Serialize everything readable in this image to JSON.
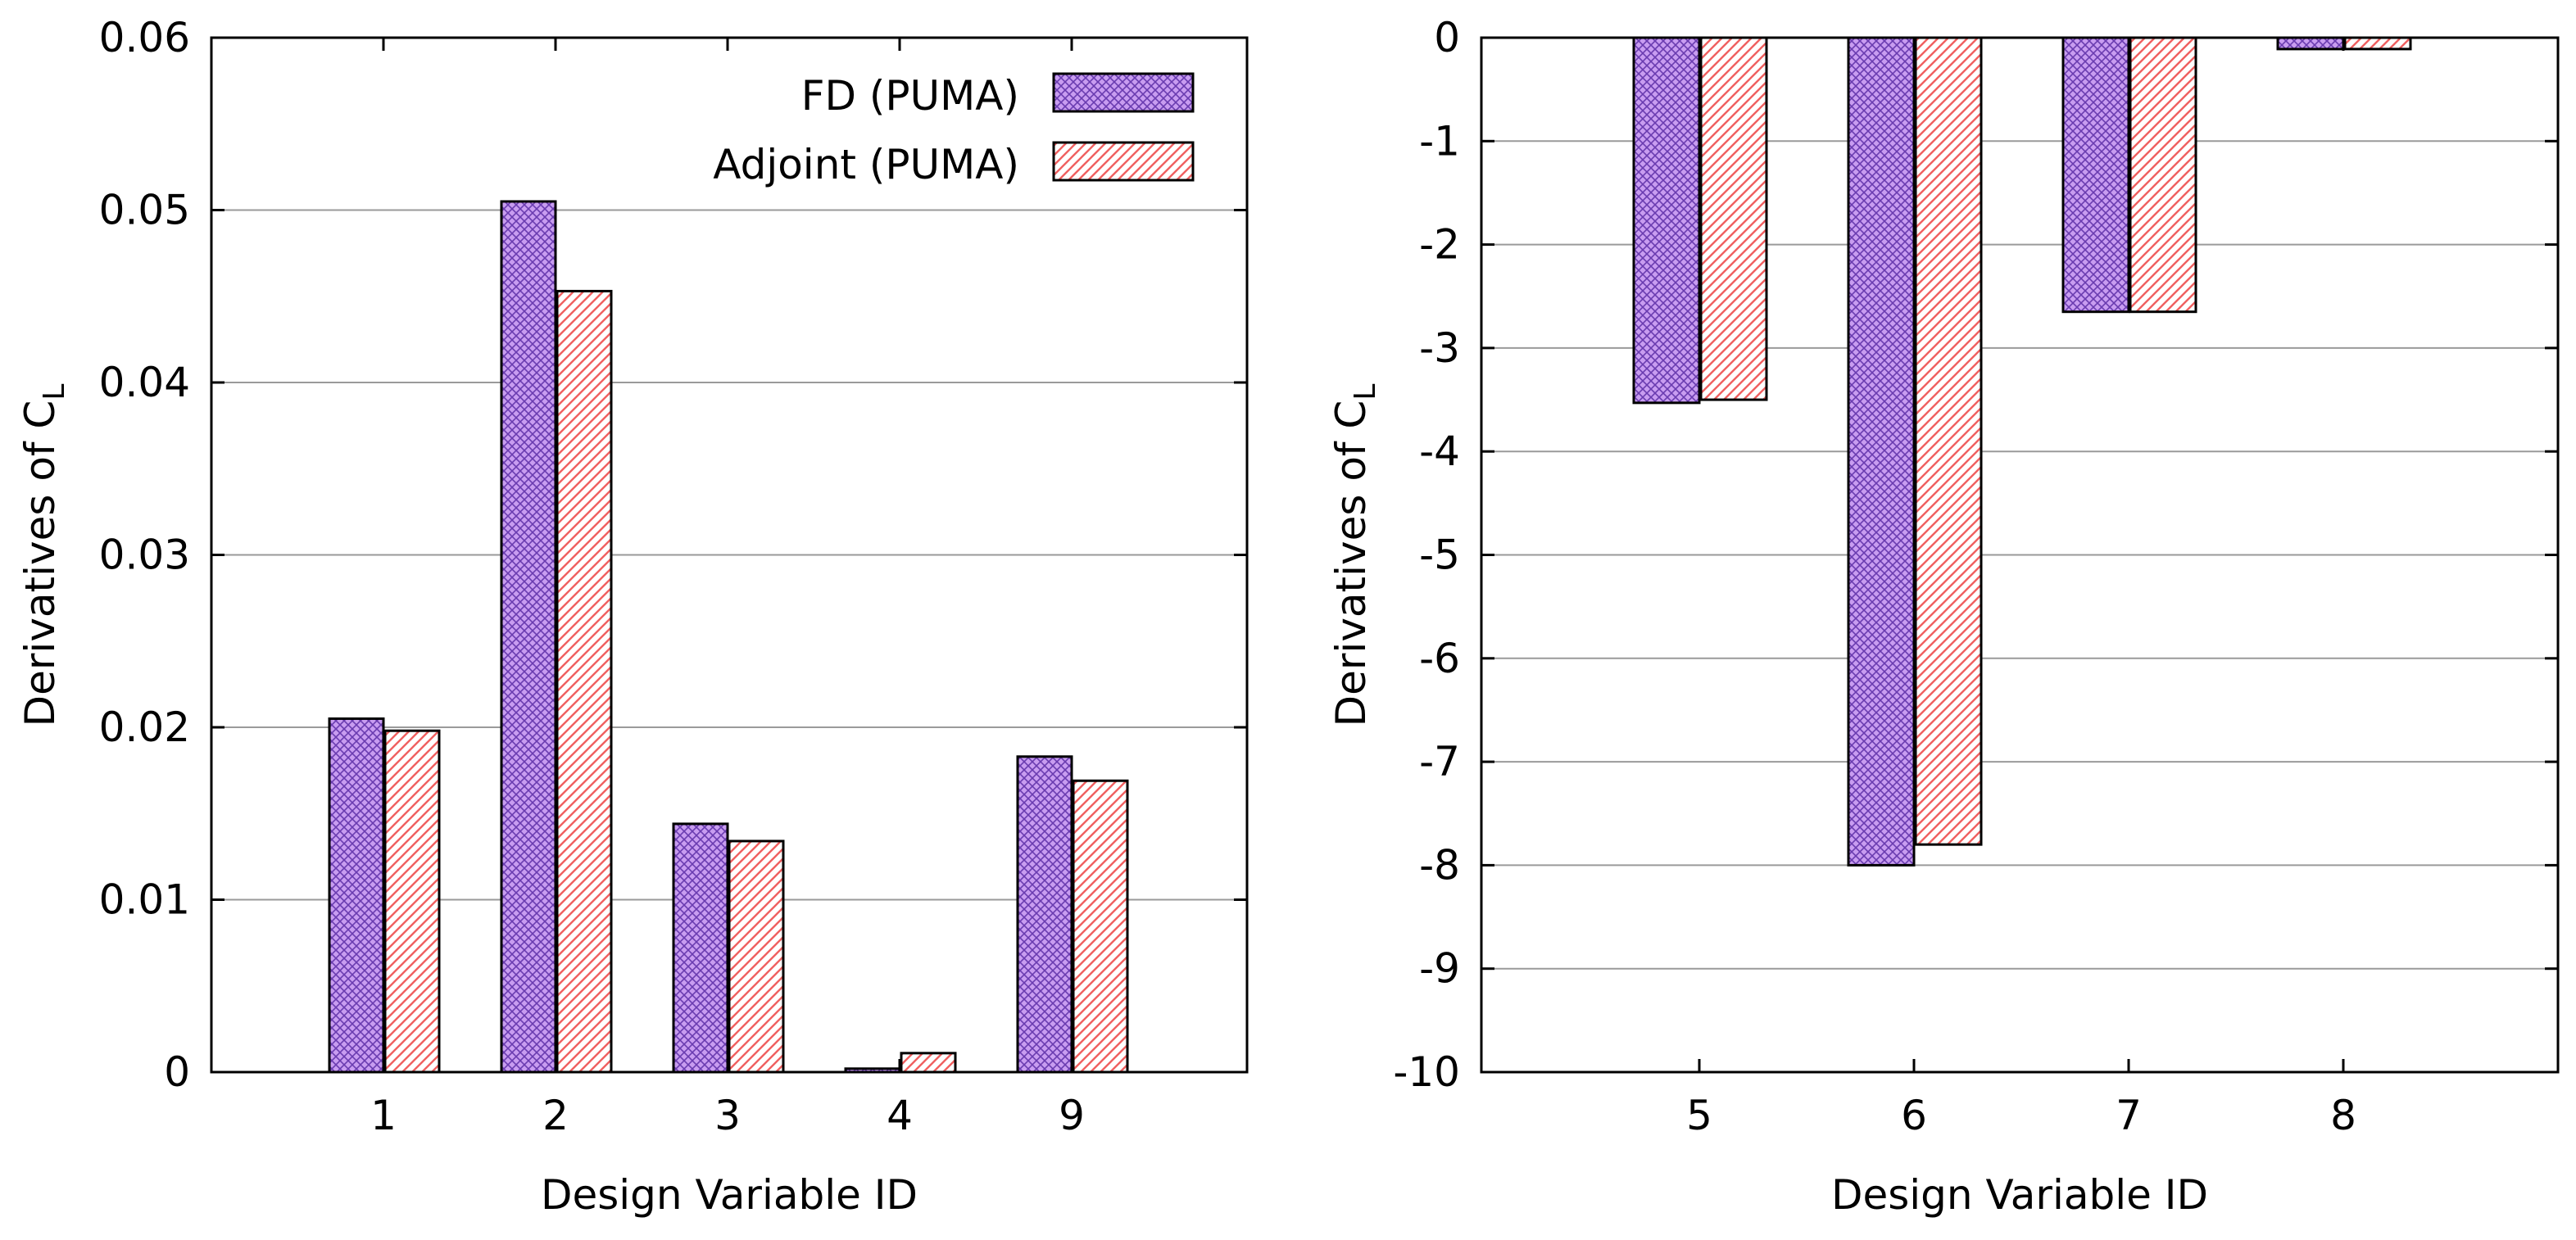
{
  "colors": {
    "fd_fill": "#c89cf0",
    "fd_hatch": "#6a3cb0",
    "adj_fill": "#ffffff",
    "adj_hatch": "#f06060",
    "grid": "#9a9a9a",
    "axis": "#000000"
  },
  "legend": {
    "fd_label": "FD (PUMA)",
    "adj_label": "Adjoint (PUMA)"
  },
  "chart_data": [
    {
      "type": "bar",
      "xlabel": "Design Variable ID",
      "ylabel": "Derivatives of C",
      "ylabel_subscript": "L",
      "ylim": [
        0,
        0.06
      ],
      "yticks": [
        0,
        0.01,
        0.02,
        0.03,
        0.04,
        0.05,
        0.06
      ],
      "ytick_labels": [
        "0",
        "0.01",
        "0.02",
        "0.03",
        "0.04",
        "0.05",
        "0.06"
      ],
      "grid": true,
      "legend_position": "top-right",
      "categories": [
        "1",
        "2",
        "3",
        "4",
        "9"
      ],
      "series": [
        {
          "name": "FD (PUMA)",
          "values": [
            0.0205,
            0.0505,
            0.0144,
            0.0002,
            0.0183
          ]
        },
        {
          "name": "Adjoint (PUMA)",
          "values": [
            0.0198,
            0.0453,
            0.0134,
            0.0011,
            0.0169
          ]
        }
      ]
    },
    {
      "type": "bar",
      "xlabel": "Design Variable ID",
      "ylabel": "Derivatives of C",
      "ylabel_subscript": "L",
      "ylim": [
        -10,
        0
      ],
      "yticks": [
        0,
        -1,
        -2,
        -3,
        -4,
        -5,
        -6,
        -7,
        -8,
        -9,
        -10
      ],
      "ytick_labels": [
        "0",
        "-1",
        "-2",
        "-3",
        "-4",
        "-5",
        "-6",
        "-7",
        "-8",
        "-9",
        "-10"
      ],
      "grid": true,
      "categories": [
        "5",
        "6",
        "7",
        "8"
      ],
      "series": [
        {
          "name": "FD (PUMA)",
          "values": [
            -3.53,
            -8.0,
            -2.65,
            -0.11
          ]
        },
        {
          "name": "Adjoint (PUMA)",
          "values": [
            -3.5,
            -7.8,
            -2.65,
            -0.11
          ]
        }
      ]
    }
  ]
}
